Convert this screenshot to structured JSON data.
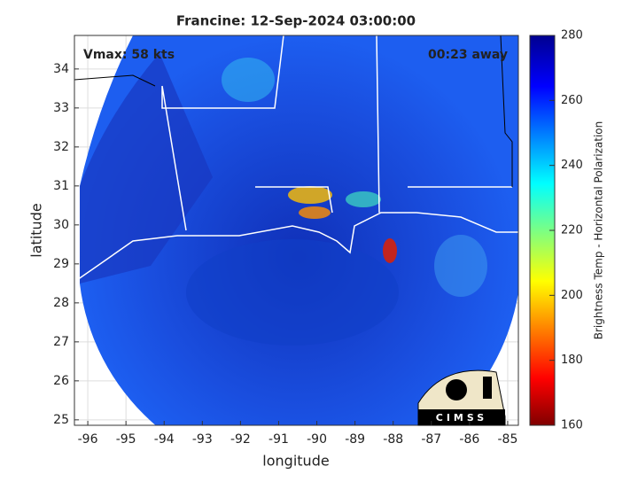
{
  "title": "Francine: 12-Sep-2024 03:00:00",
  "annotations": {
    "vmax": "Vmax: 58 kts",
    "time_away": "00:23 away"
  },
  "axes": {
    "x_label": "longitude",
    "y_label": "latitude",
    "xlim": [
      -96.35,
      -84.72
    ],
    "ylim": [
      24.86,
      34.86
    ],
    "xticks": [
      -96,
      -95,
      -94,
      -93,
      -92,
      -91,
      -90,
      -89,
      -88,
      -87,
      -86,
      -85
    ],
    "yticks": [
      25,
      26,
      27,
      28,
      29,
      30,
      31,
      32,
      33,
      34
    ]
  },
  "colorbar": {
    "label": "Brightness Temp - Horizontal Polarization",
    "lim": [
      160,
      280
    ],
    "ticks": [
      160,
      180,
      200,
      220,
      240,
      260,
      280
    ]
  },
  "logo": "CIMSS"
}
